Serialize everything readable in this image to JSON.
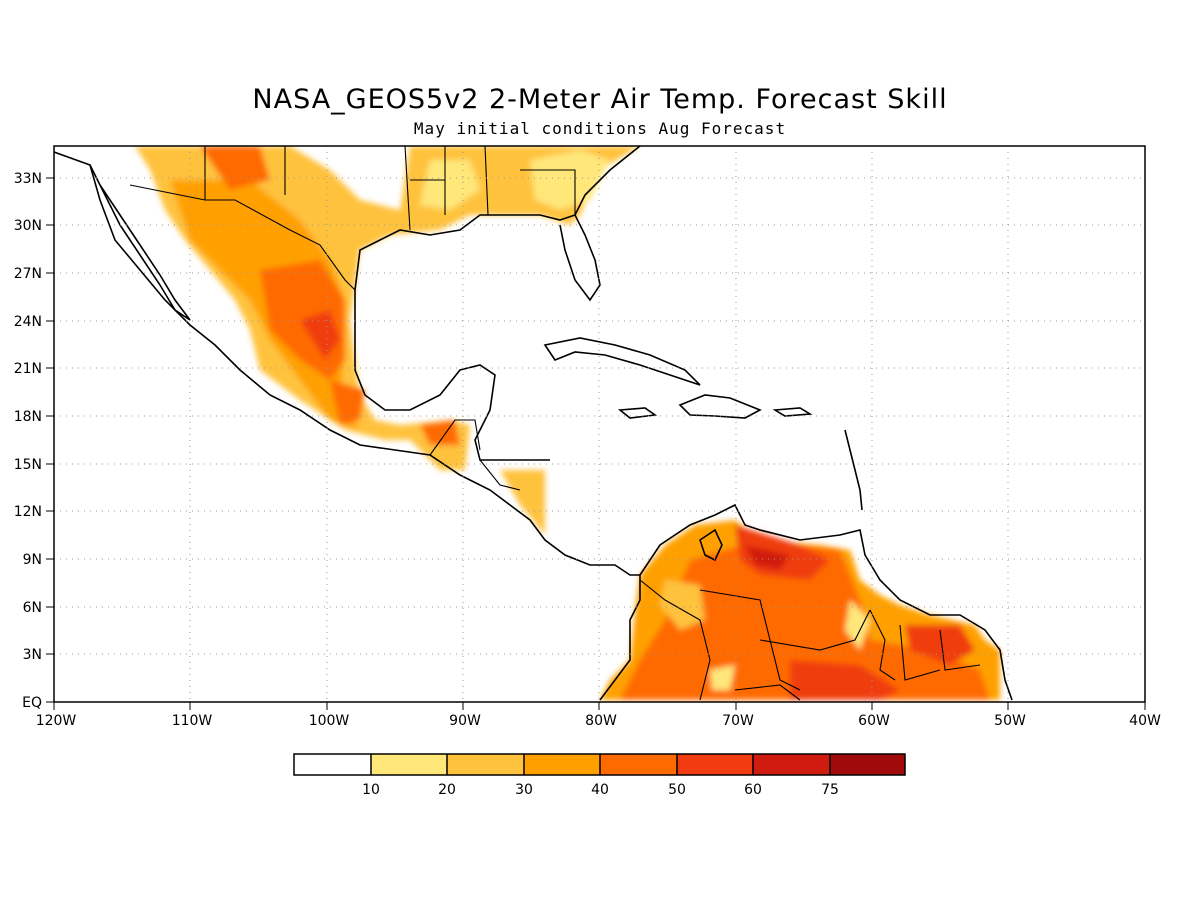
{
  "title": "NASA_GEOS5v2 2-Meter Air Temp. Forecast Skill",
  "subtitle": "May initial conditions  Aug Forecast",
  "map": {
    "lon_range": [
      -120,
      -40
    ],
    "lat_range": [
      0,
      35
    ],
    "lat_labels": [
      "EQ",
      "3N",
      "6N",
      "9N",
      "12N",
      "15N",
      "18N",
      "21N",
      "24N",
      "27N",
      "30N",
      "33N"
    ],
    "lon_labels": [
      "120W",
      "110W",
      "100W",
      "90W",
      "80W",
      "70W",
      "60W",
      "50W",
      "40W"
    ],
    "grid": "dotted",
    "regions": [
      "Mexico",
      "Central America",
      "Southeastern United States",
      "Northern South America"
    ]
  },
  "colorbar": {
    "labels": [
      "10",
      "20",
      "30",
      "40",
      "50",
      "60",
      "75"
    ],
    "colors": [
      "#ffffff",
      "#ffe77a",
      "#ffc23c",
      "#ffa000",
      "#ff6a00",
      "#f03c10",
      "#d01c10",
      "#a00a0a"
    ]
  }
}
